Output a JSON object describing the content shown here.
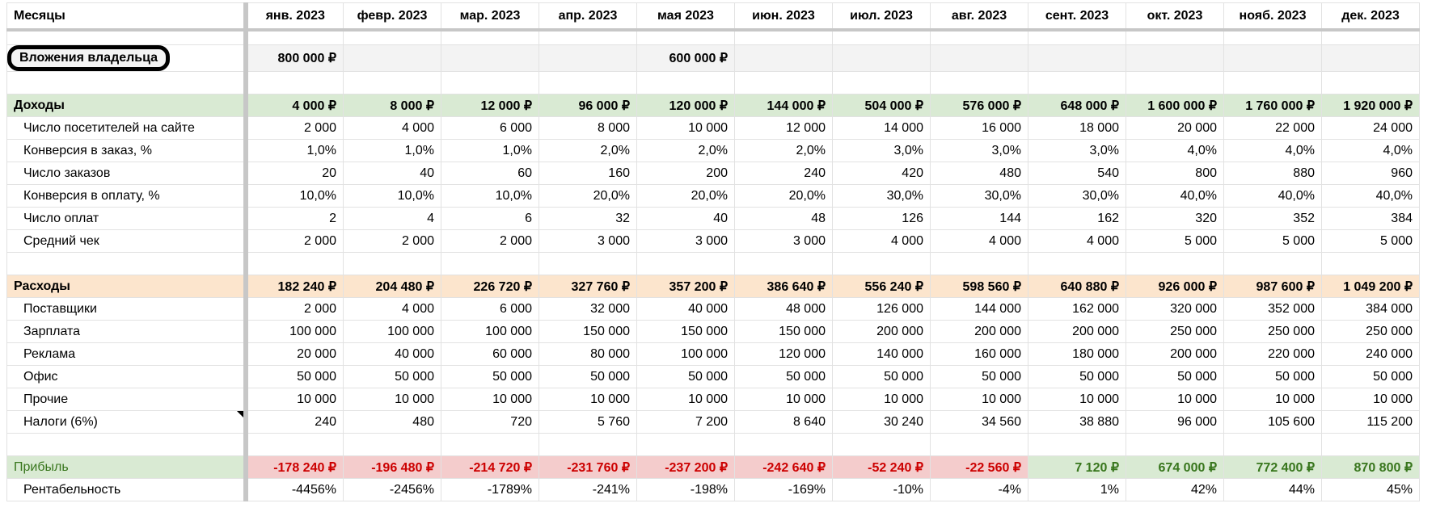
{
  "header": {
    "label": "Месяцы",
    "months": [
      "янв. 2023",
      "февр. 2023",
      "мар. 2023",
      "апр. 2023",
      "мая 2023",
      "июн. 2023",
      "июл. 2023",
      "авг. 2023",
      "сент. 2023",
      "окт. 2023",
      "нояб. 2023",
      "дек. 2023"
    ]
  },
  "owner": {
    "label": "Вложения владельца",
    "values": [
      "800 000 ₽",
      "",
      "",
      "",
      "600 000 ₽",
      "",
      "",
      "",
      "",
      "",
      "",
      ""
    ]
  },
  "income": {
    "label": "Доходы",
    "values": [
      "4 000 ₽",
      "8 000 ₽",
      "12 000 ₽",
      "96 000 ₽",
      "120 000 ₽",
      "144 000 ₽",
      "504 000 ₽",
      "576 000 ₽",
      "648 000 ₽",
      "1 600 000 ₽",
      "1 760 000 ₽",
      "1 920 000 ₽"
    ],
    "rows": [
      {
        "label": "Число посетителей на сайте",
        "values": [
          "2 000",
          "4 000",
          "6 000",
          "8 000",
          "10 000",
          "12 000",
          "14 000",
          "16 000",
          "18 000",
          "20 000",
          "22 000",
          "24 000"
        ]
      },
      {
        "label": "Конверсия в заказ, %",
        "values": [
          "1,0%",
          "1,0%",
          "1,0%",
          "2,0%",
          "2,0%",
          "2,0%",
          "3,0%",
          "3,0%",
          "3,0%",
          "4,0%",
          "4,0%",
          "4,0%"
        ]
      },
      {
        "label": "Число заказов",
        "values": [
          "20",
          "40",
          "60",
          "160",
          "200",
          "240",
          "420",
          "480",
          "540",
          "800",
          "880",
          "960"
        ]
      },
      {
        "label": "Конверсия в оплату, %",
        "values": [
          "10,0%",
          "10,0%",
          "10,0%",
          "20,0%",
          "20,0%",
          "20,0%",
          "30,0%",
          "30,0%",
          "30,0%",
          "40,0%",
          "40,0%",
          "40,0%"
        ]
      },
      {
        "label": "Число оплат",
        "values": [
          "2",
          "4",
          "6",
          "32",
          "40",
          "48",
          "126",
          "144",
          "162",
          "320",
          "352",
          "384"
        ]
      },
      {
        "label": "Средний чек",
        "values": [
          "2 000",
          "2 000",
          "2 000",
          "3 000",
          "3 000",
          "3 000",
          "4 000",
          "4 000",
          "4 000",
          "5 000",
          "5 000",
          "5 000"
        ]
      }
    ]
  },
  "expenses": {
    "label": "Расходы",
    "values": [
      "182 240 ₽",
      "204 480 ₽",
      "226 720 ₽",
      "327 760 ₽",
      "357 200 ₽",
      "386 640 ₽",
      "556 240 ₽",
      "598 560 ₽",
      "640 880 ₽",
      "926 000 ₽",
      "987 600 ₽",
      "1 049 200 ₽"
    ],
    "rows": [
      {
        "label": "Поставщики",
        "values": [
          "2 000",
          "4 000",
          "6 000",
          "32 000",
          "40 000",
          "48 000",
          "126 000",
          "144 000",
          "162 000",
          "320 000",
          "352 000",
          "384 000"
        ]
      },
      {
        "label": "Зарплата",
        "values": [
          "100 000",
          "100 000",
          "100 000",
          "150 000",
          "150 000",
          "150 000",
          "200 000",
          "200 000",
          "200 000",
          "250 000",
          "250 000",
          "250 000"
        ]
      },
      {
        "label": "Реклама",
        "values": [
          "20 000",
          "40 000",
          "60 000",
          "80 000",
          "100 000",
          "120 000",
          "140 000",
          "160 000",
          "180 000",
          "200 000",
          "220 000",
          "240 000"
        ]
      },
      {
        "label": "Офис",
        "values": [
          "50 000",
          "50 000",
          "50 000",
          "50 000",
          "50 000",
          "50 000",
          "50 000",
          "50 000",
          "50 000",
          "50 000",
          "50 000",
          "50 000"
        ]
      },
      {
        "label": "Прочие",
        "values": [
          "10 000",
          "10 000",
          "10 000",
          "10 000",
          "10 000",
          "10 000",
          "10 000",
          "10 000",
          "10 000",
          "10 000",
          "10 000",
          "10 000"
        ]
      },
      {
        "label": "Налоги (6%)",
        "values": [
          "240",
          "480",
          "720",
          "5 760",
          "7 200",
          "8 640",
          "30 240",
          "34 560",
          "38 880",
          "96 000",
          "105 600",
          "115 200"
        ],
        "note": true
      }
    ]
  },
  "profit": {
    "label": "Прибыль",
    "values": [
      "-178 240 ₽",
      "-196 480 ₽",
      "-214 720 ₽",
      "-231 760 ₽",
      "-237 200 ₽",
      "-242 640 ₽",
      "-52 240 ₽",
      "-22 560 ₽",
      "7 120 ₽",
      "674 000 ₽",
      "772 400 ₽",
      "870 800 ₽"
    ]
  },
  "margin": {
    "label": "Рентабельность",
    "values": [
      "-4456%",
      "-2456%",
      "-1789%",
      "-241%",
      "-198%",
      "-169%",
      "-10%",
      "-4%",
      "1%",
      "42%",
      "44%",
      "45%"
    ]
  },
  "colors": {
    "income_bg": "#d9ead3",
    "expense_bg": "#fce5cd",
    "loss_bg": "#f4cccc",
    "loss_text": "#cc0000",
    "profit_text": "#38761d",
    "owner_bg": "#f3f3f3"
  }
}
